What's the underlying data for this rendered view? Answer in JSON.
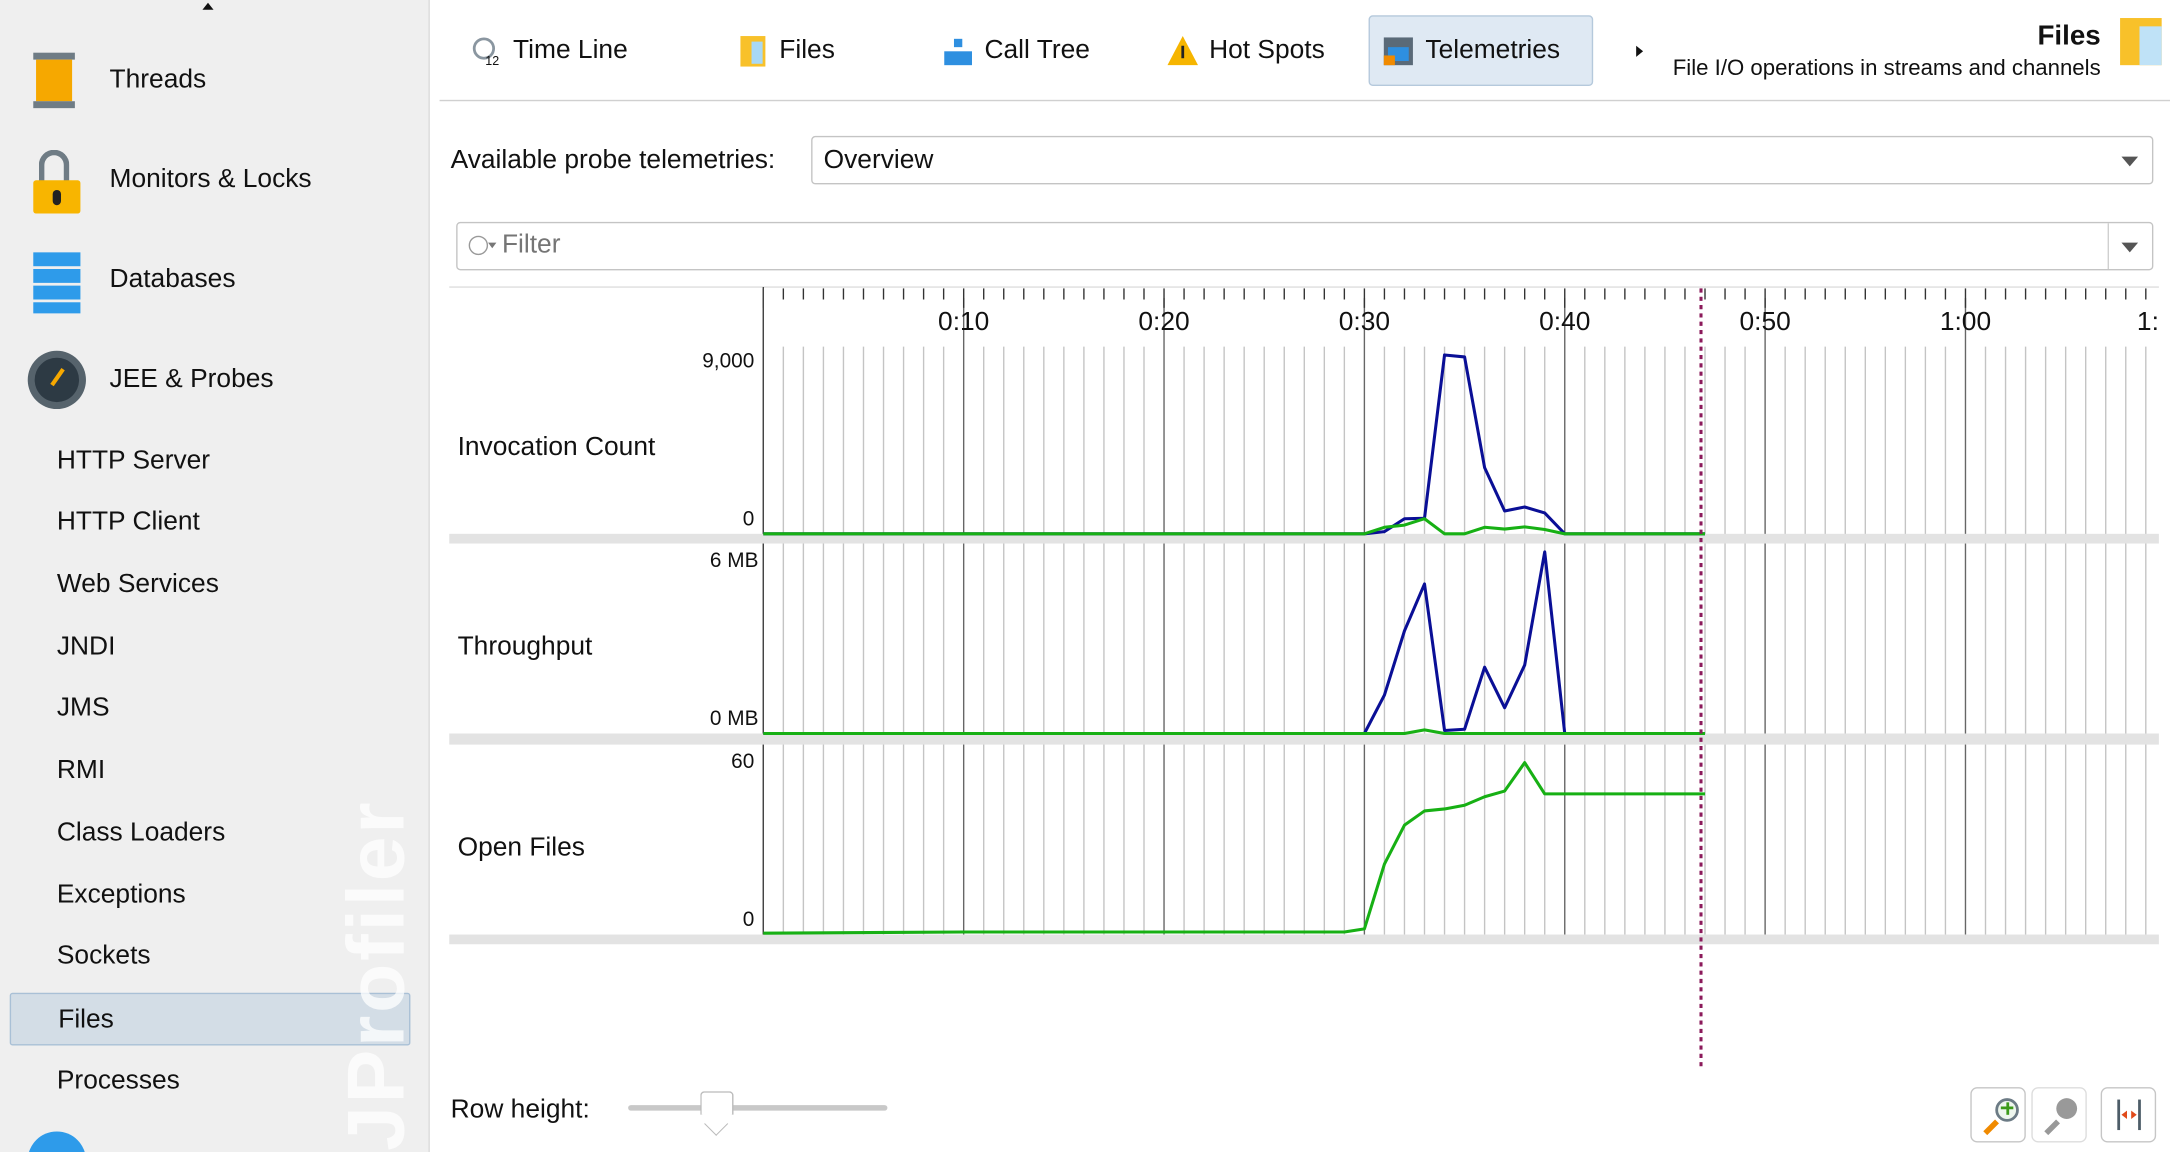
{
  "sidebar": {
    "big_items": [
      {
        "label": "Threads",
        "icon": "thread-spool-icon"
      },
      {
        "label": "Monitors & Locks",
        "icon": "padlock-icon"
      },
      {
        "label": "Databases",
        "icon": "database-icon"
      },
      {
        "label": "JEE & Probes",
        "icon": "gauge-icon"
      }
    ],
    "sub_items": [
      {
        "label": "HTTP Server"
      },
      {
        "label": "HTTP Client"
      },
      {
        "label": "Web Services"
      },
      {
        "label": "JNDI"
      },
      {
        "label": "JMS"
      },
      {
        "label": "RMI"
      },
      {
        "label": "Class Loaders"
      },
      {
        "label": "Exceptions"
      },
      {
        "label": "Sockets"
      },
      {
        "label": "Files",
        "selected": true
      },
      {
        "label": "Processes"
      }
    ],
    "watermark": "JProfiler"
  },
  "tabs": [
    {
      "label": "Time Line",
      "icon": "timeline-clock-icon"
    },
    {
      "label": "Files",
      "icon": "file-icon"
    },
    {
      "label": "Call Tree",
      "icon": "call-tree-icon"
    },
    {
      "label": "Hot Spots",
      "icon": "warning-icon"
    },
    {
      "label": "Telemetries",
      "icon": "telemetry-icon",
      "selected": true
    }
  ],
  "header": {
    "title": "Files",
    "subtitle": "File I/O operations in streams and channels"
  },
  "probe_select": {
    "label": "Available probe telemetries:",
    "value": "Overview"
  },
  "filter": {
    "placeholder": "Filter"
  },
  "row_height": {
    "label": "Row height:",
    "slider_fraction": 0.34
  },
  "colors": {
    "blue": "#0a0f96",
    "green": "#17b014",
    "cursor": "#8b1a5b",
    "selected": "#d3dde6"
  },
  "chart_data": [
    {
      "type": "line",
      "title": "Invocation Count",
      "x_unit": "seconds",
      "xlim": [
        0,
        69.7
      ],
      "x_ticks": [
        "0:10",
        "0:20",
        "0:30",
        "0:40",
        "0:50",
        "1:00",
        "1:"
      ],
      "y_tick_labels": [
        "9,000",
        "0"
      ],
      "ylim": [
        0,
        9000
      ],
      "x": [
        0,
        30,
        31,
        32,
        33,
        34,
        35,
        36,
        37,
        38,
        39,
        40,
        47
      ],
      "series": [
        {
          "color": "#0a0f96",
          "values": [
            0,
            0,
            110,
            760,
            780,
            9000,
            8900,
            3330,
            1150,
            1350,
            1050,
            0,
            0
          ]
        },
        {
          "color": "#17b014",
          "values": [
            0,
            0,
            330,
            440,
            760,
            0,
            0,
            330,
            240,
            350,
            220,
            0,
            0
          ]
        }
      ]
    },
    {
      "type": "line",
      "title": "Throughput",
      "y_tick_labels": [
        "6 MB",
        "0 MB"
      ],
      "ylim": [
        0,
        6
      ],
      "x": [
        0,
        30,
        31,
        32,
        33,
        34,
        35,
        36,
        37,
        38,
        39,
        40,
        47
      ],
      "series": [
        {
          "color": "#0a0f96",
          "values": [
            0,
            0,
            1.27,
            3.39,
            4.94,
            0.1,
            0.14,
            2.19,
            0.85,
            2.26,
            6.0,
            0,
            0
          ]
        },
        {
          "color": "#17b014",
          "values": [
            0,
            0,
            0,
            0,
            0.12,
            0,
            0,
            0,
            0,
            0,
            0,
            0,
            0
          ]
        }
      ]
    },
    {
      "type": "line",
      "title": "Open Files",
      "y_tick_labels": [
        "60",
        "0"
      ],
      "ylim": [
        0,
        60
      ],
      "x": [
        0,
        10,
        29,
        30,
        31,
        32,
        33,
        34,
        35,
        36,
        37,
        38,
        39,
        47
      ],
      "series": [
        {
          "color": "#17b014",
          "values": [
            0,
            0.4,
            0.4,
            1.5,
            24.3,
            38,
            43,
            43.7,
            45,
            48,
            50,
            60,
            49,
            49
          ]
        }
      ]
    }
  ],
  "cursor_time": 46.8
}
